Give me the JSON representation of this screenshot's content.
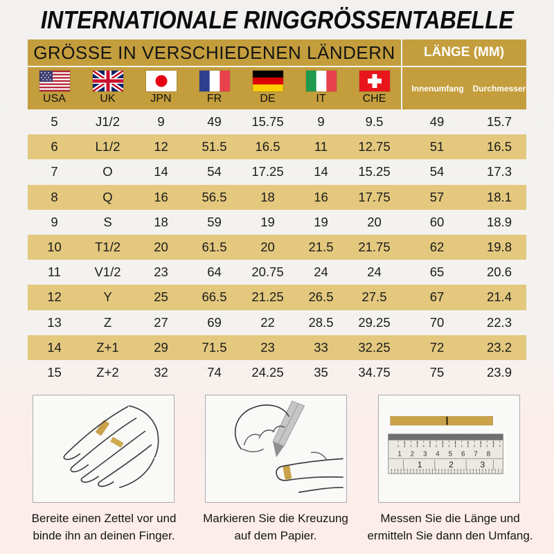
{
  "title": "INTERNATIONALE RINGGRÖSSENTABELLE",
  "table": {
    "header_left": "GRÖSSE IN VERSCHIEDENEN LÄNDERN",
    "header_right": "LÄNGE (MM)",
    "countries": [
      {
        "code": "USA",
        "flag": "flag-usa"
      },
      {
        "code": "UK",
        "flag": "flag-uk"
      },
      {
        "code": "JPN",
        "flag": "flag-japan"
      },
      {
        "code": "FR",
        "flag": "flag-france"
      },
      {
        "code": "DE",
        "flag": "flag-germany"
      },
      {
        "code": "IT",
        "flag": "flag-italy"
      },
      {
        "code": "CHE",
        "flag": "flag-switzerland"
      }
    ],
    "length_columns": [
      "Innenumfang",
      "Durchmesser"
    ]
  },
  "chart_data": {
    "type": "table",
    "title": "INTERNATIONALE RINGGRÖSSENTABELLE",
    "section_headers": {
      "left": "GRÖSSE IN VERSCHIEDENEN LÄNDERN",
      "right": "LÄNGE (MM)"
    },
    "columns": [
      "USA",
      "UK",
      "JPN",
      "FR",
      "DE",
      "IT",
      "CHE",
      "Innenumfang",
      "Durchmesser"
    ],
    "rows": [
      [
        "5",
        "J1/2",
        "9",
        "49",
        "15.75",
        "9",
        "9.5",
        "49",
        "15.7"
      ],
      [
        "6",
        "L1/2",
        "12",
        "51.5",
        "16.5",
        "11",
        "12.75",
        "51",
        "16.5"
      ],
      [
        "7",
        "O",
        "14",
        "54",
        "17.25",
        "14",
        "15.25",
        "54",
        "17.3"
      ],
      [
        "8",
        "Q",
        "16",
        "56.5",
        "18",
        "16",
        "17.75",
        "57",
        "18.1"
      ],
      [
        "9",
        "S",
        "18",
        "59",
        "19",
        "19",
        "20",
        "60",
        "18.9"
      ],
      [
        "10",
        "T1/2",
        "20",
        "61.5",
        "20",
        "21.5",
        "21.75",
        "62",
        "19.8"
      ],
      [
        "11",
        "V1/2",
        "23",
        "64",
        "20.75",
        "24",
        "24",
        "65",
        "20.6"
      ],
      [
        "12",
        "Y",
        "25",
        "66.5",
        "21.25",
        "26.5",
        "27.5",
        "67",
        "21.4"
      ],
      [
        "13",
        "Z",
        "27",
        "69",
        "22",
        "28.5",
        "29.25",
        "70",
        "22.3"
      ],
      [
        "14",
        "Z+1",
        "29",
        "71.5",
        "23",
        "33",
        "32.25",
        "72",
        "23.2"
      ],
      [
        "15",
        "Z+2",
        "32",
        "74",
        "24.25",
        "35",
        "34.75",
        "75",
        "23.9"
      ]
    ]
  },
  "instructions": [
    {
      "icon": "hand-with-paper-strip-illustration",
      "caption_line1": "Bereite einen Zettel vor und",
      "caption_line2": "binde ihn an deinen Finger."
    },
    {
      "icon": "pen-marking-finger-illustration",
      "caption_line1": "Markieren Sie die Kreuzung",
      "caption_line2": "auf dem Papier."
    },
    {
      "icon": "ruler-measuring-strip-illustration",
      "caption_line1": "Messen Sie die Länge und",
      "caption_line2": "ermitteln Sie dann den Umfang."
    }
  ],
  "ruler": {
    "cm_numbers": [
      "1",
      "2",
      "3",
      "4",
      "5",
      "6",
      "7",
      "8"
    ],
    "inch_numbers": [
      "1",
      "2",
      "3"
    ]
  },
  "colors": {
    "gold_header": "#c49e3d",
    "gold_row": "#e3c87e",
    "gold_strip": "#c9a24a",
    "background_top": "#f2f1ef",
    "background_bottom": "#fcedea",
    "header_text_white": "#ffffff",
    "body_text": "#1c1c1c"
  }
}
